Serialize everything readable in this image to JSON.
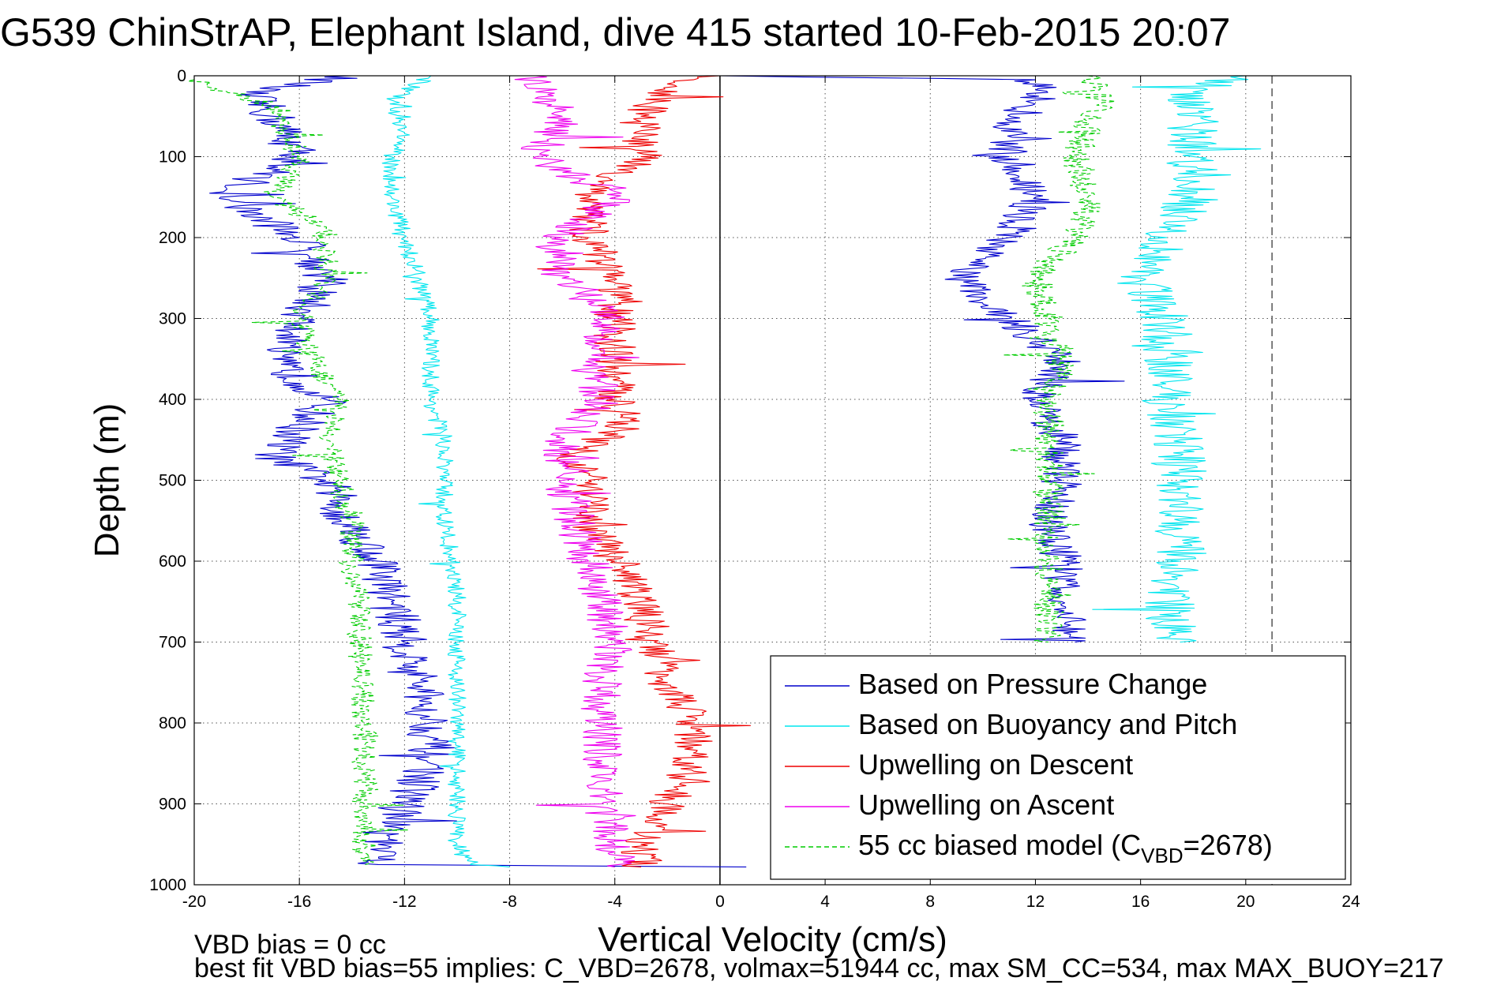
{
  "chart_data": {
    "type": "line",
    "title": "G539 ChinStrAP, Elephant Island, dive 415 started 10-Feb-2015 20:07",
    "xlabel": "Vertical Velocity (cm/s)",
    "ylabel": "Depth (m)",
    "xlim": [
      -20,
      24
    ],
    "ylim": [
      0,
      1000
    ],
    "y_reversed": true,
    "x_ticks": [
      "-20",
      "-16",
      "-12",
      "-8",
      "-4",
      "0",
      "4",
      "8",
      "12",
      "16",
      "20",
      "24"
    ],
    "y_ticks": [
      "0",
      "100",
      "200",
      "300",
      "400",
      "500",
      "600",
      "700",
      "800",
      "900",
      "1000"
    ],
    "grid": true,
    "legend_position": "bottom-right",
    "reference_lines": [
      {
        "x": 0,
        "style": "solid",
        "color": "#000000"
      },
      {
        "x": 21,
        "style": "dashed",
        "color": "#555555"
      }
    ],
    "series": [
      {
        "name": "Based on Pressure Change",
        "color": "#0000cc",
        "style": "solid",
        "noise": 0.9,
        "points": [
          {
            "x": -14,
            "y": 0
          },
          {
            "x": -18,
            "y": 20
          },
          {
            "x": -17,
            "y": 50
          },
          {
            "x": -16,
            "y": 100
          },
          {
            "x": -19,
            "y": 150
          },
          {
            "x": -16,
            "y": 200
          },
          {
            "x": -15,
            "y": 250
          },
          {
            "x": -16,
            "y": 300
          },
          {
            "x": -17,
            "y": 350
          },
          {
            "x": -15,
            "y": 400
          },
          {
            "x": -17,
            "y": 470
          },
          {
            "x": -15,
            "y": 500
          },
          {
            "x": -14,
            "y": 560
          },
          {
            "x": -13,
            "y": 600
          },
          {
            "x": -12.5,
            "y": 650
          },
          {
            "x": -12,
            "y": 700
          },
          {
            "x": -11.5,
            "y": 750
          },
          {
            "x": -11,
            "y": 800
          },
          {
            "x": -11,
            "y": 850
          },
          {
            "x": -12,
            "y": 900
          },
          {
            "x": -13,
            "y": 950
          },
          {
            "x": -13,
            "y": 975
          },
          {
            "x": 1,
            "y": 978
          }
        ]
      },
      {
        "name": "Based on Buoyancy and Pitch",
        "color": "#00e5ee",
        "style": "solid",
        "noise": 0.35,
        "points": [
          {
            "x": -11,
            "y": 0
          },
          {
            "x": -12.5,
            "y": 30
          },
          {
            "x": -12,
            "y": 70
          },
          {
            "x": -12.5,
            "y": 100
          },
          {
            "x": -12.5,
            "y": 150
          },
          {
            "x": -12,
            "y": 200
          },
          {
            "x": -11.5,
            "y": 250
          },
          {
            "x": -11,
            "y": 300
          },
          {
            "x": -11,
            "y": 350
          },
          {
            "x": -11,
            "y": 400
          },
          {
            "x": -10.5,
            "y": 450
          },
          {
            "x": -10.5,
            "y": 500
          },
          {
            "x": -10.5,
            "y": 550
          },
          {
            "x": -10.2,
            "y": 600
          },
          {
            "x": -10,
            "y": 650
          },
          {
            "x": -10,
            "y": 700
          },
          {
            "x": -10,
            "y": 750
          },
          {
            "x": -10,
            "y": 800
          },
          {
            "x": -10,
            "y": 850
          },
          {
            "x": -10,
            "y": 900
          },
          {
            "x": -10,
            "y": 950
          },
          {
            "x": -9.5,
            "y": 975
          },
          {
            "x": -8,
            "y": 978
          }
        ]
      },
      {
        "name": "Upwelling on Descent",
        "color": "#ee0000",
        "style": "solid",
        "noise": 0.8,
        "points": [
          {
            "x": 0,
            "y": 0
          },
          {
            "x": -2,
            "y": 10
          },
          {
            "x": -3,
            "y": 50
          },
          {
            "x": -3,
            "y": 100
          },
          {
            "x": -5,
            "y": 150
          },
          {
            "x": -5,
            "y": 200
          },
          {
            "x": -4,
            "y": 250
          },
          {
            "x": -4,
            "y": 300
          },
          {
            "x": -4,
            "y": 350
          },
          {
            "x": -4,
            "y": 400
          },
          {
            "x": -3.5,
            "y": 430
          },
          {
            "x": -5.5,
            "y": 470
          },
          {
            "x": -5,
            "y": 500
          },
          {
            "x": -5,
            "y": 550
          },
          {
            "x": -4,
            "y": 600
          },
          {
            "x": -3,
            "y": 650
          },
          {
            "x": -2.5,
            "y": 700
          },
          {
            "x": -2,
            "y": 750
          },
          {
            "x": -1,
            "y": 800
          },
          {
            "x": -1,
            "y": 850
          },
          {
            "x": -2,
            "y": 900
          },
          {
            "x": -3,
            "y": 950
          },
          {
            "x": -3,
            "y": 978
          }
        ]
      },
      {
        "name": "Upwelling on Ascent",
        "color": "#ee00ee",
        "style": "solid",
        "noise": 0.8,
        "points": [
          {
            "x": -7,
            "y": 0
          },
          {
            "x": -7,
            "y": 20
          },
          {
            "x": -6,
            "y": 50
          },
          {
            "x": -7,
            "y": 100
          },
          {
            "x": -4,
            "y": 150
          },
          {
            "x": -6,
            "y": 200
          },
          {
            "x": -6,
            "y": 250
          },
          {
            "x": -4,
            "y": 300
          },
          {
            "x": -5,
            "y": 350
          },
          {
            "x": -4.5,
            "y": 400
          },
          {
            "x": -6,
            "y": 450
          },
          {
            "x": -6,
            "y": 500
          },
          {
            "x": -5.5,
            "y": 550
          },
          {
            "x": -5,
            "y": 600
          },
          {
            "x": -4.5,
            "y": 650
          },
          {
            "x": -4,
            "y": 700
          },
          {
            "x": -4.5,
            "y": 750
          },
          {
            "x": -4.5,
            "y": 800
          },
          {
            "x": -4.5,
            "y": 850
          },
          {
            "x": -4.5,
            "y": 900
          },
          {
            "x": -4,
            "y": 950
          },
          {
            "x": -4,
            "y": 978
          }
        ]
      },
      {
        "name": "55 cc biased model (C_VBD=2678)",
        "color": "#00cc00",
        "style": "dashed",
        "noise": 0.5,
        "points": [
          {
            "x": -20,
            "y": 5
          },
          {
            "x": -17,
            "y": 40
          },
          {
            "x": -16,
            "y": 100
          },
          {
            "x": -17,
            "y": 150
          },
          {
            "x": -15,
            "y": 190
          },
          {
            "x": -15,
            "y": 250
          },
          {
            "x": -16,
            "y": 300
          },
          {
            "x": -15.5,
            "y": 350
          },
          {
            "x": -14.5,
            "y": 400
          },
          {
            "x": -15,
            "y": 450
          },
          {
            "x": -14.5,
            "y": 500
          },
          {
            "x": -14,
            "y": 550
          },
          {
            "x": -14,
            "y": 600
          },
          {
            "x": -13.8,
            "y": 650
          },
          {
            "x": -13.7,
            "y": 700
          },
          {
            "x": -13.6,
            "y": 750
          },
          {
            "x": -13.5,
            "y": 800
          },
          {
            "x": -13.5,
            "y": 850
          },
          {
            "x": -13.5,
            "y": 900
          },
          {
            "x": -13.5,
            "y": 950
          },
          {
            "x": -13.5,
            "y": 975
          }
        ]
      },
      {
        "name": "",
        "color": "#0000cc",
        "style": "solid",
        "noise": 0.8,
        "points": [
          {
            "x": 0,
            "y": 0
          },
          {
            "x": 12,
            "y": 5
          },
          {
            "x": 12,
            "y": 30
          },
          {
            "x": 11,
            "y": 60
          },
          {
            "x": 11,
            "y": 100
          },
          {
            "x": 12,
            "y": 150
          },
          {
            "x": 11,
            "y": 200
          },
          {
            "x": 9,
            "y": 250
          },
          {
            "x": 11,
            "y": 300
          },
          {
            "x": 13,
            "y": 350
          },
          {
            "x": 12,
            "y": 400
          },
          {
            "x": 13,
            "y": 450
          },
          {
            "x": 13,
            "y": 500
          },
          {
            "x": 12.5,
            "y": 550
          },
          {
            "x": 13,
            "y": 600
          },
          {
            "x": 13,
            "y": 650
          },
          {
            "x": 13.5,
            "y": 700
          }
        ]
      },
      {
        "name": "",
        "color": "#00e5ee",
        "style": "solid",
        "noise": 1.0,
        "points": [
          {
            "x": 20,
            "y": 0
          },
          {
            "x": 18,
            "y": 20
          },
          {
            "x": 18,
            "y": 60
          },
          {
            "x": 18,
            "y": 100
          },
          {
            "x": 18,
            "y": 150
          },
          {
            "x": 17,
            "y": 200
          },
          {
            "x": 16,
            "y": 250
          },
          {
            "x": 17,
            "y": 300
          },
          {
            "x": 17,
            "y": 350
          },
          {
            "x": 17,
            "y": 400
          },
          {
            "x": 17.5,
            "y": 450
          },
          {
            "x": 17.5,
            "y": 500
          },
          {
            "x": 17.5,
            "y": 550
          },
          {
            "x": 17.5,
            "y": 600
          },
          {
            "x": 17,
            "y": 650
          },
          {
            "x": 17.5,
            "y": 700
          }
        ]
      },
      {
        "name": "",
        "color": "#00cc00",
        "style": "dashed",
        "noise": 0.6,
        "points": [
          {
            "x": 14,
            "y": 0
          },
          {
            "x": 14.5,
            "y": 30
          },
          {
            "x": 14,
            "y": 60
          },
          {
            "x": 13.5,
            "y": 100
          },
          {
            "x": 14,
            "y": 150
          },
          {
            "x": 13.5,
            "y": 200
          },
          {
            "x": 12,
            "y": 250
          },
          {
            "x": 12.5,
            "y": 300
          },
          {
            "x": 13,
            "y": 350
          },
          {
            "x": 12.5,
            "y": 400
          },
          {
            "x": 12.5,
            "y": 450
          },
          {
            "x": 12.5,
            "y": 500
          },
          {
            "x": 12.5,
            "y": 550
          },
          {
            "x": 12.5,
            "y": 600
          },
          {
            "x": 12.5,
            "y": 650
          },
          {
            "x": 12.5,
            "y": 700
          }
        ]
      },
      {
        "name": "",
        "color": "#00cc00",
        "style": "solid",
        "noise": 0,
        "points": [
          {
            "x": 2,
            "y": 0
          },
          {
            "x": 23,
            "y": 0
          }
        ]
      }
    ],
    "legend_entries": [
      {
        "label": "Based on Pressure Change",
        "color": "#0000cc",
        "style": "solid"
      },
      {
        "label": "Based on Buoyancy and Pitch",
        "color": "#00e5ee",
        "style": "solid"
      },
      {
        "label": "Upwelling on Descent",
        "color": "#ee0000",
        "style": "solid"
      },
      {
        "label": "Upwelling on Ascent",
        "color": "#ee00ee",
        "style": "solid"
      },
      {
        "label_main": "55 cc biased model (C",
        "label_sub": "VBD",
        "label_tail": "=2678)",
        "color": "#00cc00",
        "style": "dashed"
      }
    ],
    "annotations": {
      "bias_text": "VBD bias = 0 cc",
      "fit_text": "best fit VBD bias=55 implies: C_VBD=2678, volmax=51944 cc, max SM_CC=534, max MAX_BUOY=217"
    }
  }
}
